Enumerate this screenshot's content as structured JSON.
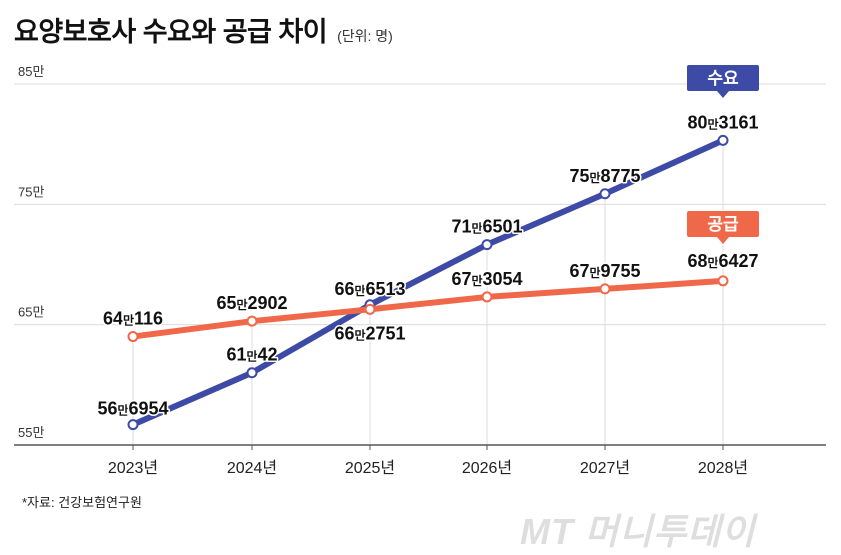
{
  "title": "요양보호사 수요와 공급 차이",
  "unit": "(단위: 명)",
  "source": "*자료: 건강보험연구원",
  "watermark": "MT 머니투데이",
  "colors": {
    "demand": "#3d4aa6",
    "supply": "#f0684a",
    "grid": "#dcdcdc",
    "axis": "#555555"
  },
  "chart_data": {
    "type": "line",
    "title": "요양보호사 수요와 공급 차이",
    "ylabel": "명",
    "xlabel": "",
    "categories": [
      "2023년",
      "2024년",
      "2025년",
      "2026년",
      "2027년",
      "2028년"
    ],
    "ylim": [
      550000,
      850000
    ],
    "yticks": [
      {
        "value": 850000,
        "label": "85만"
      },
      {
        "value": 750000,
        "label": "75만"
      },
      {
        "value": 650000,
        "label": "65만"
      },
      {
        "value": 550000,
        "label": "55만"
      }
    ],
    "series": [
      {
        "name": "수요",
        "color": "#3d4aa6",
        "values": [
          566954,
          610042,
          666513,
          716501,
          758775,
          803161
        ],
        "labels": [
          {
            "man": "56",
            "rest": "6954"
          },
          {
            "man": "61",
            "rest": "42"
          },
          {
            "man": "66",
            "rest": "6513"
          },
          {
            "man": "71",
            "rest": "6501"
          },
          {
            "man": "75",
            "rest": "8775"
          },
          {
            "man": "80",
            "rest": "3161"
          }
        ]
      },
      {
        "name": "공급",
        "color": "#f0684a",
        "values": [
          640116,
          652902,
          662751,
          673054,
          679755,
          686427
        ],
        "labels": [
          {
            "man": "64",
            "rest": "116"
          },
          {
            "man": "65",
            "rest": "2902"
          },
          {
            "man": "66",
            "rest": "2751"
          },
          {
            "man": "67",
            "rest": "3054"
          },
          {
            "man": "67",
            "rest": "9755"
          },
          {
            "man": "68",
            "rest": "6427"
          }
        ]
      }
    ],
    "man_unit": "만"
  }
}
